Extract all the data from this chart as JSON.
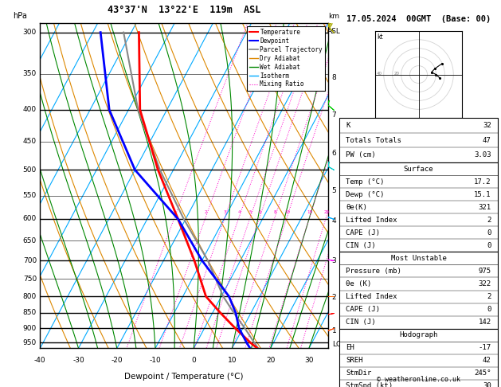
{
  "title_left": "43°37'N  13°22'E  119m  ASL",
  "title_right": "17.05.2024  00GMT  (Base: 00)",
  "xlabel": "Dewpoint / Temperature (°C)",
  "ylabel_left": "hPa",
  "bg_color": "#ffffff",
  "pressure_levels": [
    300,
    350,
    400,
    450,
    500,
    550,
    600,
    650,
    700,
    750,
    800,
    850,
    900,
    950
  ],
  "pressure_major": [
    300,
    400,
    500,
    600,
    700,
    800,
    850,
    900,
    950
  ],
  "temp_min": -40,
  "temp_max": 35,
  "temp_ticks": [
    -40,
    -30,
    -20,
    -10,
    0,
    10,
    20,
    30
  ],
  "pres_min": 290,
  "pres_max": 970,
  "skew_factor": 45.0,
  "temperature_profile": {
    "temp": [
      17.2,
      14.0,
      8.0,
      2.0,
      -4.0,
      -12.0,
      -22.0,
      -34.0,
      -47.0,
      -58.0
    ],
    "pres": [
      975,
      950,
      900,
      850,
      800,
      700,
      600,
      500,
      400,
      300
    ]
  },
  "dewpoint_profile": {
    "temp": [
      15.1,
      13.0,
      9.0,
      6.0,
      2.0,
      -10.0,
      -22.0,
      -40.0,
      -55.0,
      -68.0
    ],
    "pres": [
      975,
      950,
      900,
      850,
      800,
      700,
      600,
      500,
      400,
      300
    ]
  },
  "parcel_profile": {
    "temp": [
      17.2,
      15.0,
      10.5,
      5.5,
      0.5,
      -8.5,
      -20.5,
      -33.5,
      -47.5,
      -62.0
    ],
    "pres": [
      975,
      950,
      900,
      850,
      800,
      700,
      600,
      500,
      400,
      300
    ]
  },
  "km_ticks": [
    1,
    2,
    3,
    4,
    5,
    6,
    7,
    8
  ],
  "km_pressures": [
    908,
    802,
    700,
    604,
    540,
    470,
    408,
    355
  ],
  "lcl_pressure": 955,
  "mixing_ratio_lines": [
    1,
    2,
    3,
    4,
    5,
    6,
    8,
    10,
    15,
    20,
    25
  ],
  "mixing_ratio_label_pressure": 595,
  "colors": {
    "temperature": "#ff0000",
    "dewpoint": "#0000ff",
    "parcel": "#888888",
    "dry_adiabat": "#dd8800",
    "wet_adiabat": "#008800",
    "isotherm": "#00aaff",
    "mixing_ratio": "#ff00cc",
    "border": "#000000"
  },
  "table_data": {
    "indices": [
      [
        "K",
        "32"
      ],
      [
        "Totals Totals",
        "47"
      ],
      [
        "PW (cm)",
        "3.03"
      ]
    ],
    "surface_header": "Surface",
    "surface": [
      [
        "Temp (°C)",
        "17.2"
      ],
      [
        "Dewp (°C)",
        "15.1"
      ],
      [
        "θe(K)",
        "321"
      ],
      [
        "Lifted Index",
        "2"
      ],
      [
        "CAPE (J)",
        "0"
      ],
      [
        "CIN (J)",
        "0"
      ]
    ],
    "most_unstable_header": "Most Unstable",
    "most_unstable": [
      [
        "Pressure (mb)",
        "975"
      ],
      [
        "θe (K)",
        "322"
      ],
      [
        "Lifted Index",
        "2"
      ],
      [
        "CAPE (J)",
        "0"
      ],
      [
        "CIN (J)",
        "142"
      ]
    ],
    "hodograph_header": "Hodograph",
    "hodograph_data": [
      [
        "EH",
        "-17"
      ],
      [
        "SREH",
        "42"
      ],
      [
        "StmDir",
        "245°"
      ],
      [
        "StmSpd (kt)",
        "30"
      ]
    ]
  },
  "wind_barbs_data": {
    "pressures": [
      975,
      900,
      850,
      800,
      700,
      600,
      500,
      400,
      300
    ],
    "speeds": [
      30,
      20,
      15,
      20,
      25,
      30,
      40,
      50,
      60
    ],
    "directions": [
      245,
      250,
      260,
      270,
      280,
      290,
      300,
      310,
      320
    ],
    "colors": [
      "#ff0000",
      "#ff4400",
      "#ff0000",
      "#ff6600",
      "#ff00ff",
      "#00aaff",
      "#00cccc",
      "#00cc00",
      "#aaaa00"
    ]
  },
  "copyright": "© weatheronline.co.uk"
}
